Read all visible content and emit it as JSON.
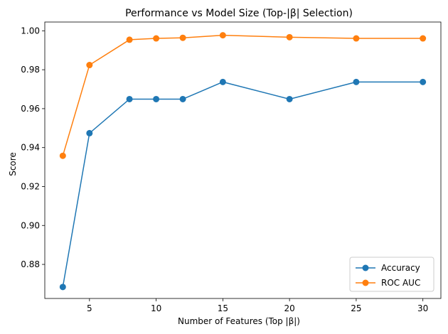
{
  "chart_data": {
    "type": "line",
    "title": "Performance vs Model Size (Top-|β| Selection)",
    "xlabel": "Number of Features (Top |β|)",
    "ylabel": "Score",
    "x": [
      3,
      5,
      8,
      10,
      12,
      15,
      20,
      25,
      30
    ],
    "xlim": [
      1.65,
      31.35
    ],
    "ylim": [
      0.8625,
      1.0045
    ],
    "xticks": [
      5,
      10,
      15,
      20,
      25,
      30
    ],
    "yticks": [
      0.88,
      0.9,
      0.92,
      0.94,
      0.96,
      0.98,
      1.0
    ],
    "ytick_labels": [
      "0.88",
      "0.90",
      "0.92",
      "0.94",
      "0.96",
      "0.98",
      "1.00"
    ],
    "grid": false,
    "legend_position": "lower-right",
    "series": [
      {
        "name": "Accuracy",
        "color": "#1f77b4",
        "marker": "circle",
        "values": [
          0.8684,
          0.9474,
          0.9649,
          0.9649,
          0.9649,
          0.9737,
          0.9649,
          0.9737,
          0.9737
        ]
      },
      {
        "name": "ROC AUC",
        "color": "#ff7f0e",
        "marker": "circle",
        "values": [
          0.9358,
          0.9824,
          0.9954,
          0.9961,
          0.9964,
          0.9977,
          0.9967,
          0.9961,
          0.9961
        ]
      }
    ]
  }
}
